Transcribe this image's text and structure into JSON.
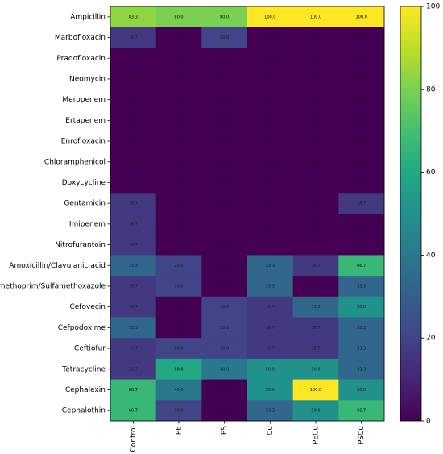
{
  "chart_data": {
    "type": "heatmap",
    "title": "",
    "xlabel": "",
    "ylabel": "",
    "columns": [
      "Control",
      "PE",
      "PS",
      "Cu",
      "PECu",
      "PSCu"
    ],
    "rows": [
      "Ampicillin",
      "Marbofloxacin",
      "Pradofloxacin",
      "Neomycin",
      "Meropenem",
      "Ertapenem",
      "Enrofloxacin",
      "Chloramphenicol",
      "Doxycycline",
      "Gentamicin",
      "Imipenem",
      "Nitrofurantoin",
      "Amoxicillin/Clavulanic acid",
      "Trimethoprim/Sulfamethoxazole",
      "Cefovecin",
      "Cefpodoxime",
      "Ceftiofur",
      "Tetracycline",
      "Cephalexin",
      "Cephalothin"
    ],
    "values": [
      [
        83.3,
        80.0,
        80.0,
        100.0,
        100.0,
        100.0
      ],
      [
        16.7,
        0.0,
        20.0,
        0.0,
        0.0,
        0.0
      ],
      [
        0.0,
        0.0,
        0.0,
        0.0,
        0.0,
        0.0
      ],
      [
        0.0,
        0.0,
        0.0,
        0.0,
        0.0,
        0.0
      ],
      [
        0.0,
        0.0,
        0.0,
        0.0,
        0.0,
        0.0
      ],
      [
        0.0,
        0.0,
        0.0,
        0.0,
        0.0,
        0.0
      ],
      [
        0.0,
        0.0,
        0.0,
        0.0,
        0.0,
        0.0
      ],
      [
        0.0,
        0.0,
        0.0,
        0.0,
        0.0,
        0.0
      ],
      [
        0.0,
        0.0,
        0.0,
        0.0,
        0.0,
        0.0
      ],
      [
        16.7,
        0.0,
        0.0,
        0.0,
        0.0,
        16.7
      ],
      [
        16.7,
        0.0,
        0.0,
        0.0,
        0.0,
        0.0
      ],
      [
        16.7,
        0.0,
        0.0,
        0.0,
        0.0,
        0.0
      ],
      [
        33.3,
        20.0,
        0.0,
        33.3,
        16.7,
        66.7
      ],
      [
        16.7,
        20.0,
        0.0,
        33.3,
        0.0,
        33.3
      ],
      [
        16.7,
        0.0,
        20.0,
        16.7,
        33.3,
        50.0
      ],
      [
        33.3,
        0.0,
        20.0,
        16.7,
        16.7,
        33.3
      ],
      [
        16.7,
        20.0,
        20.0,
        16.7,
        16.7,
        33.3
      ],
      [
        16.7,
        60.0,
        40.0,
        50.0,
        50.0,
        33.3
      ],
      [
        66.7,
        40.0,
        0.0,
        50.0,
        100.0,
        50.0
      ],
      [
        66.7,
        20.0,
        0.0,
        33.3,
        50.0,
        66.7
      ]
    ],
    "colormap": "viridis",
    "vmin": 0,
    "vmax": 100,
    "colorbar_ticks": [
      0,
      20,
      40,
      60,
      80,
      100
    ],
    "grid": false
  }
}
